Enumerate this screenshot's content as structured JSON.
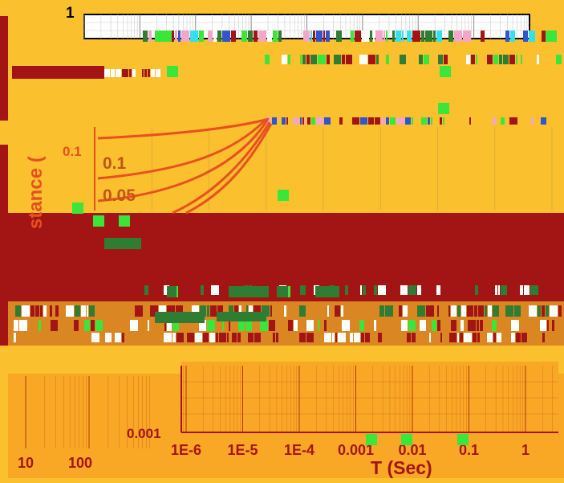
{
  "colors": {
    "background": "#fbc02d",
    "band_dark": "#a31515",
    "band_orange": "#f9a825",
    "noise_green": "#2e7d32",
    "noise_lime": "#39e639",
    "noise_cyan": "#33e0f0",
    "noise_pink": "#f4a6c8",
    "curve": "#e8501e",
    "grid": "#c9a24a",
    "text_dark": "#6b1010",
    "text_white": "#ffffff",
    "text_black": "#000000"
  },
  "chart_data": [
    {
      "type": "line",
      "title": "",
      "xlabel": "",
      "ylabel": "",
      "xscale": "log",
      "yscale": "log",
      "ylim": [
        0.001,
        1
      ],
      "x_ticks": [],
      "y_ticks": [
        "1"
      ],
      "grid": true,
      "series": []
    },
    {
      "type": "line",
      "title": "",
      "xlabel": "",
      "ylabel": "stance (",
      "yscale": "log",
      "y_ticks": [
        "0.1"
      ],
      "curve_labels": [
        "0.1",
        "0.05"
      ],
      "grid": true,
      "series": []
    },
    {
      "type": "line",
      "title": "",
      "xlabel": "T (Sec)",
      "ylabel": "",
      "xscale": "log",
      "yscale": "log",
      "x_ticks": [
        "1E-6",
        "1E-5",
        "1E-4",
        "0.001",
        "0.01",
        "0.1",
        "1"
      ],
      "y_ticks": [
        "0.001"
      ],
      "grid": true,
      "series": []
    },
    {
      "type": "line",
      "title": "",
      "xlabel": "",
      "ylabel": "",
      "xscale": "log",
      "x_ticks": [
        "10",
        "100"
      ],
      "grid": true,
      "series": []
    }
  ]
}
